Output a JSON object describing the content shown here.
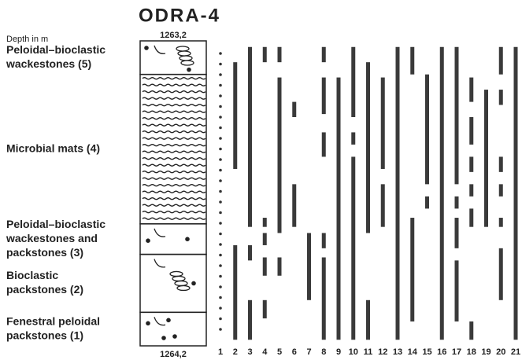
{
  "title": "ODRA-4",
  "depth_label": "Depth in m",
  "depth_axis": {
    "top": {
      "value": 1263.2,
      "label": "1263,2"
    },
    "bottom": {
      "value": 1264.2,
      "label": "1264,2"
    }
  },
  "facies": [
    {
      "lines": [
        "Peloidal–bioclastic",
        "wackestones (5)"
      ],
      "range": [
        1263.2,
        1263.31
      ]
    },
    {
      "lines": [
        "Microbial  mats (4)"
      ],
      "range": [
        1263.31,
        1263.8
      ]
    },
    {
      "lines": [
        "Peloidal–bioclastic",
        "wackestones and",
        "packstones (3)"
      ],
      "range": [
        1263.8,
        1263.9
      ]
    },
    {
      "lines": [
        "Bioclastic",
        "packstones (2)"
      ],
      "range": [
        1263.9,
        1264.09
      ]
    },
    {
      "lines": [
        "Fenestral peloidal",
        "packstones (1)"
      ],
      "range": [
        1264.09,
        1264.2
      ]
    }
  ],
  "columns": [
    {
      "number": 1,
      "ranges": []
    },
    {
      "number": 2,
      "ranges": [
        [
          1263.27,
          1263.62
        ],
        [
          1263.87,
          1264.18
        ]
      ]
    },
    {
      "number": 3,
      "ranges": [
        [
          1263.22,
          1263.81
        ],
        [
          1263.87,
          1263.92
        ],
        [
          1264.05,
          1264.18
        ]
      ]
    },
    {
      "number": 4,
      "ranges": [
        [
          1263.22,
          1263.27
        ],
        [
          1263.78,
          1263.81
        ],
        [
          1263.83,
          1263.87
        ],
        [
          1263.91,
          1263.97
        ],
        [
          1264.05,
          1264.11
        ]
      ]
    },
    {
      "number": 5,
      "ranges": [
        [
          1263.22,
          1263.27
        ],
        [
          1263.32,
          1263.83
        ],
        [
          1263.91,
          1263.97
        ]
      ]
    },
    {
      "number": 6,
      "ranges": [
        [
          1263.4,
          1263.45
        ],
        [
          1263.67,
          1263.81
        ]
      ]
    },
    {
      "number": 7,
      "ranges": [
        [
          1263.83,
          1264.05
        ]
      ]
    },
    {
      "number": 8,
      "ranges": [
        [
          1263.22,
          1263.27
        ],
        [
          1263.32,
          1263.44
        ],
        [
          1263.5,
          1263.58
        ],
        [
          1263.83,
          1263.88
        ],
        [
          1263.91,
          1264.18
        ]
      ]
    },
    {
      "number": 9,
      "ranges": [
        [
          1263.32,
          1264.18
        ]
      ]
    },
    {
      "number": 10,
      "ranges": [
        [
          1263.22,
          1263.45
        ],
        [
          1263.5,
          1263.54
        ],
        [
          1263.58,
          1264.18
        ]
      ]
    },
    {
      "number": 11,
      "ranges": [
        [
          1263.27,
          1263.83
        ],
        [
          1264.05,
          1264.18
        ]
      ]
    },
    {
      "number": 12,
      "ranges": [
        [
          1263.32,
          1263.62
        ],
        [
          1263.67,
          1263.81
        ]
      ]
    },
    {
      "number": 13,
      "ranges": [
        [
          1263.22,
          1264.18
        ]
      ]
    },
    {
      "number": 14,
      "ranges": [
        [
          1263.22,
          1263.31
        ],
        [
          1263.78,
          1264.12
        ]
      ]
    },
    {
      "number": 15,
      "ranges": [
        [
          1263.31,
          1263.67
        ],
        [
          1263.71,
          1263.75
        ]
      ]
    },
    {
      "number": 16,
      "ranges": [
        [
          1263.22,
          1264.18
        ]
      ]
    },
    {
      "number": 17,
      "ranges": [
        [
          1263.22,
          1263.67
        ],
        [
          1263.71,
          1263.75
        ],
        [
          1263.78,
          1263.88
        ],
        [
          1263.92,
          1264.12
        ]
      ]
    },
    {
      "number": 18,
      "ranges": [
        [
          1263.32,
          1263.4
        ],
        [
          1263.45,
          1263.54
        ],
        [
          1263.58,
          1263.63
        ],
        [
          1263.67,
          1263.71
        ],
        [
          1263.75,
          1263.81
        ],
        [
          1264.12,
          1264.18
        ]
      ]
    },
    {
      "number": 19,
      "ranges": [
        [
          1263.36,
          1263.81
        ]
      ]
    },
    {
      "number": 20,
      "ranges": [
        [
          1263.22,
          1263.31
        ],
        [
          1263.36,
          1263.41
        ],
        [
          1263.58,
          1263.63
        ],
        [
          1263.67,
          1263.71
        ],
        [
          1263.78,
          1263.81
        ],
        [
          1263.88,
          1264.05
        ]
      ]
    },
    {
      "number": 21,
      "ranges": [
        [
          1263.22,
          1264.18
        ]
      ]
    }
  ]
}
